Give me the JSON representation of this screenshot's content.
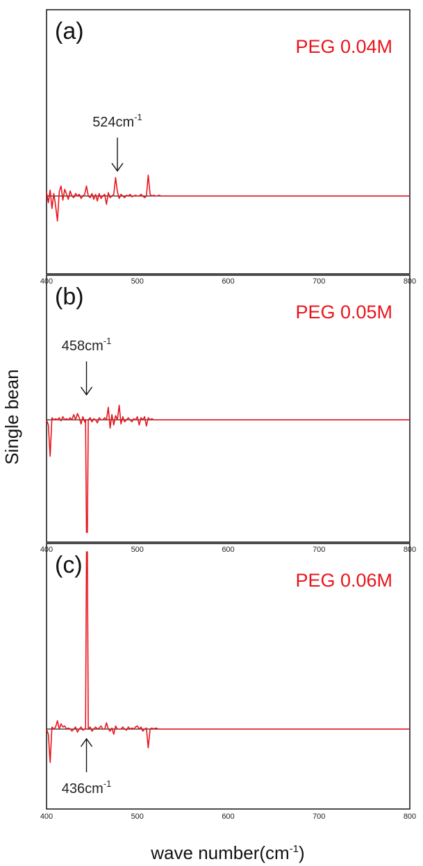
{
  "colors": {
    "trace": "#e8141b",
    "baseline": "#222222",
    "frame": "#111111"
  },
  "ylabel": "Single bean",
  "xlabel": {
    "main": "wave number(cm",
    "sup": "-1",
    "close": ")"
  },
  "chart_data": [
    {
      "type": "line",
      "panel_tag": "(a)",
      "series_label": "PEG 0.04M",
      "annotation": {
        "base": "524cm",
        "sup": "-1",
        "x": 478,
        "arrow": "down"
      },
      "xlim": [
        400,
        800
      ],
      "ylim": [
        -1,
        1
      ],
      "xticks": [
        "400",
        "500",
        "600",
        "700",
        "800"
      ],
      "series": [
        {
          "x": [
            400,
            402,
            404,
            406,
            408,
            410,
            412,
            414,
            416,
            418,
            420,
            422,
            424,
            426,
            428,
            430,
            432,
            434,
            436,
            438,
            440,
            442,
            444,
            446,
            448,
            450,
            452,
            454,
            456,
            458,
            460,
            462,
            464,
            466,
            468,
            470,
            472,
            474,
            476,
            478,
            480,
            482,
            484,
            486,
            488,
            490,
            492,
            494,
            496,
            498,
            500,
            502,
            504,
            506,
            508,
            510,
            512,
            514,
            516,
            518,
            520,
            522,
            524,
            526,
            530,
            600,
            700,
            800
          ],
          "y": [
            0.05,
            -0.08,
            0.07,
            -0.15,
            0.03,
            -0.12,
            -0.3,
            0.05,
            0.12,
            -0.05,
            0.08,
            0.02,
            -0.04,
            0.06,
            0.0,
            -0.02,
            0.03,
            0.0,
            0.02,
            -0.03,
            0.0,
            0.02,
            0.12,
            0.0,
            -0.02,
            0.03,
            -0.04,
            0.02,
            -0.06,
            0.03,
            -0.03,
            0.0,
            0.02,
            -0.1,
            0.04,
            -0.02,
            0.0,
            0.02,
            0.22,
            0.05,
            -0.03,
            0.02,
            0.0,
            -0.02,
            0.01,
            0.0,
            0.02,
            -0.01,
            0.0,
            0.01,
            0.0,
            0.0,
            0.02,
            0.0,
            -0.02,
            0.0,
            0.25,
            0.02,
            0.0,
            0.01,
            0.0,
            0.0,
            0.01,
            0.0,
            0,
            0,
            0,
            0
          ]
        }
      ]
    },
    {
      "type": "line",
      "panel_tag": "(b)",
      "series_label": "PEG 0.05M",
      "annotation": {
        "base": "458cm",
        "sup": "-1",
        "x": 444,
        "arrow": "down"
      },
      "xlim": [
        400,
        800
      ],
      "ylim": [
        -1,
        1
      ],
      "xticks": [
        "400",
        "500",
        "600",
        "700",
        "800"
      ],
      "series": [
        {
          "x": [
            400,
            402,
            404,
            406,
            408,
            410,
            412,
            414,
            416,
            418,
            420,
            422,
            424,
            426,
            428,
            430,
            432,
            434,
            436,
            438,
            440,
            442,
            443,
            444,
            445,
            446,
            448,
            450,
            452,
            454,
            456,
            458,
            460,
            462,
            464,
            466,
            468,
            470,
            472,
            474,
            476,
            478,
            480,
            482,
            484,
            486,
            488,
            490,
            492,
            494,
            496,
            498,
            500,
            502,
            504,
            506,
            508,
            510,
            512,
            514,
            516,
            518,
            520,
            524,
            530,
            600,
            700,
            800
          ],
          "y": [
            0.0,
            -0.05,
            -0.35,
            0.02,
            0.0,
            0.01,
            0.0,
            0.02,
            -0.01,
            0.03,
            0.0,
            0.01,
            0.0,
            0.02,
            0.0,
            0.05,
            0.0,
            0.06,
            0.02,
            -0.04,
            0.03,
            -0.02,
            0.0,
            -1.08,
            -1.08,
            0.0,
            0.02,
            -0.02,
            0.01,
            0.0,
            -0.03,
            0.02,
            0.0,
            0.0,
            0.02,
            0.0,
            0.12,
            -0.08,
            0.05,
            -0.05,
            0.04,
            0.0,
            0.14,
            -0.04,
            0.03,
            -0.02,
            0.0,
            0.02,
            0.0,
            -0.02,
            0.01,
            0.0,
            0.03,
            -0.05,
            0.02,
            0.0,
            0.03,
            -0.06,
            0.02,
            0.0,
            0.01,
            0.0,
            0.0,
            0.0,
            0,
            0,
            0,
            0
          ]
        }
      ]
    },
    {
      "type": "line",
      "panel_tag": "(c)",
      "series_label": "PEG 0.06M",
      "annotation": {
        "base": "436cm",
        "sup": "-1",
        "x": 444,
        "arrow": "up"
      },
      "xlim": [
        400,
        800
      ],
      "ylim": [
        -1,
        1
      ],
      "xticks": [
        "400",
        "500",
        "600",
        "700",
        "800"
      ],
      "series": [
        {
          "x": [
            400,
            402,
            404,
            406,
            408,
            410,
            412,
            414,
            416,
            418,
            420,
            422,
            424,
            426,
            428,
            430,
            432,
            434,
            436,
            438,
            440,
            442,
            443,
            444,
            445,
            446,
            448,
            450,
            452,
            454,
            456,
            458,
            460,
            462,
            464,
            466,
            468,
            470,
            472,
            474,
            476,
            478,
            480,
            482,
            484,
            486,
            488,
            490,
            492,
            494,
            496,
            498,
            500,
            502,
            504,
            506,
            508,
            510,
            512,
            514,
            516,
            518,
            520,
            524,
            530,
            600,
            700,
            800
          ],
          "y": [
            0.0,
            -0.05,
            -0.32,
            0.02,
            0.0,
            0.02,
            0.08,
            0.0,
            0.05,
            0.02,
            0.03,
            0.0,
            0.01,
            0.0,
            -0.02,
            0.0,
            0.02,
            -0.03,
            0.0,
            0.02,
            -0.01,
            0.0,
            0.0,
            1.7,
            1.7,
            0.0,
            0.02,
            -0.02,
            0.0,
            0.02,
            0.0,
            0.01,
            0.03,
            0.0,
            0.0,
            0.06,
            0.0,
            -0.02,
            0.01,
            -0.05,
            0.03,
            0.0,
            0.0,
            0.0,
            0.02,
            0.0,
            -0.01,
            0.02,
            0.0,
            0.01,
            0.0,
            0.02,
            0.03,
            0.0,
            0.02,
            -0.02,
            0.0,
            0.01,
            -0.18,
            0.0,
            0.01,
            0.0,
            0.01,
            0.0,
            0,
            0,
            0,
            0
          ]
        }
      ]
    }
  ]
}
